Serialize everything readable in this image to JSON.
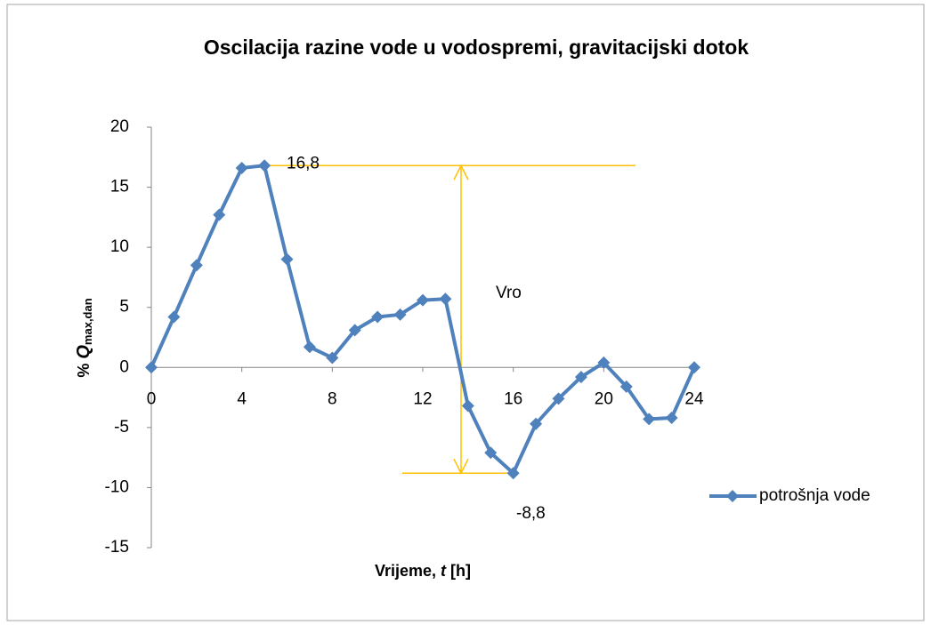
{
  "chart_data": {
    "type": "line",
    "title": "Oscilacija razine vode u vodospremi, gravitacijski dotok",
    "xlabel": [
      "Vrijeme, ",
      "t",
      " [h]"
    ],
    "ylabel": {
      "prefix": "% ",
      "symbol": "Q",
      "subscript": "max,dan"
    },
    "x": [
      0,
      1,
      2,
      3,
      4,
      5,
      6,
      7,
      8,
      9,
      10,
      11,
      12,
      13,
      14,
      15,
      16,
      17,
      18,
      19,
      20,
      21,
      22,
      23,
      24
    ],
    "series": [
      {
        "name": "potrošnja vode",
        "color": "#4f81bd",
        "values": [
          0,
          4.2,
          8.5,
          12.7,
          16.6,
          16.8,
          9.0,
          1.7,
          0.8,
          3.1,
          4.2,
          4.4,
          5.6,
          5.7,
          -3.2,
          -7.1,
          -8.8,
          -4.7,
          -2.6,
          -0.8,
          0.4,
          -1.6,
          -4.3,
          -4.2,
          0
        ]
      }
    ],
    "xlim": [
      0,
      24
    ],
    "xticks": [
      0,
      4,
      8,
      12,
      16,
      20,
      24
    ],
    "ylim": [
      -15,
      20
    ],
    "yticks": [
      -15,
      -10,
      -5,
      0,
      5,
      10,
      15,
      20
    ],
    "annotations": [
      {
        "label": "16,8",
        "value": 16.8
      },
      {
        "label": "-8,8",
        "value": -8.8
      },
      {
        "label": "Vro"
      }
    ],
    "annotation_color": "#ffc000",
    "legend": "right"
  }
}
